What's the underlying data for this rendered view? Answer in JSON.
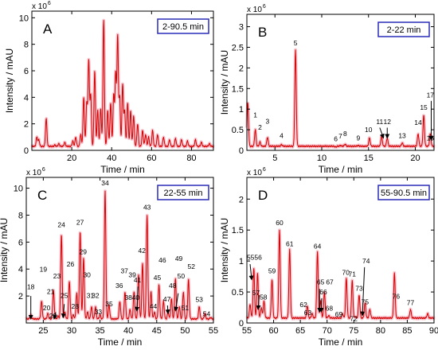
{
  "chart_data": [
    {
      "type": "line",
      "panel_letter": "A",
      "time_range_label": "2-90.5 min",
      "xlabel": "Time / min",
      "ylabel": "Intensity / mAU",
      "y_multiplier_label": "x 10",
      "y_multiplier_exp": "6",
      "xlim": [
        0,
        91
      ],
      "ylim": [
        0,
        10.5
      ],
      "x_ticks": [
        20,
        40,
        60,
        80
      ],
      "y_ticks": [
        0,
        2,
        4,
        6,
        8,
        10
      ],
      "baseline": 0.3,
      "peaks": [
        [
          2.5,
          1.0
        ],
        [
          3.5,
          0.8
        ],
        [
          7.2,
          2.4
        ],
        [
          11.5,
          0.4
        ],
        [
          13.5,
          0.5
        ],
        [
          16.5,
          0.6
        ],
        [
          20.5,
          0.7
        ],
        [
          22,
          1.0
        ],
        [
          24.5,
          1.2
        ],
        [
          26,
          4.0
        ],
        [
          27.5,
          3.6
        ],
        [
          28.5,
          6.8
        ],
        [
          29.5,
          4.2
        ],
        [
          31.5,
          6.0
        ],
        [
          33,
          3.0
        ],
        [
          34.5,
          3.2
        ],
        [
          36,
          9.8
        ],
        [
          38,
          3.0
        ],
        [
          39.5,
          3.6
        ],
        [
          41,
          4.2
        ],
        [
          42,
          5.8
        ],
        [
          43,
          8.6
        ],
        [
          44,
          4.0
        ],
        [
          45.5,
          5.0
        ],
        [
          46.5,
          3.0
        ],
        [
          48,
          3.6
        ],
        [
          49.5,
          3.0
        ],
        [
          51,
          2.6
        ],
        [
          53,
          2.0
        ],
        [
          55.5,
          1.5
        ],
        [
          57,
          1.2
        ],
        [
          58.5,
          1.0
        ],
        [
          60.5,
          1.5
        ],
        [
          63,
          1.2
        ],
        [
          66,
          1.0
        ],
        [
          69,
          0.8
        ],
        [
          72,
          0.9
        ],
        [
          75,
          0.8
        ],
        [
          78,
          0.7
        ],
        [
          82,
          0.8
        ],
        [
          85,
          0.6
        ],
        [
          89,
          0.5
        ]
      ]
    },
    {
      "type": "line",
      "panel_letter": "B",
      "time_range_label": "2-22 min",
      "xlabel": "Time / min",
      "ylabel": "Intensity / mAU",
      "y_multiplier_label": "x 10",
      "y_multiplier_exp": "6",
      "xlim": [
        2,
        22
      ],
      "ylim": [
        0,
        3.3
      ],
      "x_ticks": [
        5,
        10,
        15,
        20
      ],
      "y_ticks": [
        0,
        0.5,
        1,
        1.5,
        2,
        2.5,
        3
      ],
      "baseline": 0.1,
      "peaks": [
        [
          2.1,
          1.15
        ],
        [
          2.9,
          0.5
        ],
        [
          3.4,
          0.2
        ],
        [
          4.2,
          0.32
        ],
        [
          5.7,
          0.14
        ],
        [
          7.2,
          2.42
        ],
        [
          11.5,
          0.08
        ],
        [
          12.0,
          0.12
        ],
        [
          12.5,
          0.15
        ],
        [
          13.9,
          0.12
        ],
        [
          15.1,
          0.3
        ],
        [
          16.4,
          0.35
        ],
        [
          17.0,
          0.3
        ],
        [
          18.6,
          0.18
        ],
        [
          20.3,
          0.4
        ],
        [
          20.9,
          0.85
        ],
        [
          21.6,
          0.4
        ]
      ],
      "peak_labels": [
        {
          "label": "1",
          "x": 2.9,
          "y": 0.8
        },
        {
          "label": "2",
          "x": 3.4,
          "y": 0.5
        },
        {
          "label": "3",
          "x": 4.2,
          "y": 0.65
        },
        {
          "label": "4",
          "x": 5.7,
          "y": 0.3
        },
        {
          "label": "5",
          "x": 7.2,
          "y": 2.55
        },
        {
          "label": "6",
          "x": 11.5,
          "y": 0.22
        },
        {
          "label": "7",
          "x": 12.0,
          "y": 0.29
        },
        {
          "label": "8",
          "x": 12.5,
          "y": 0.35
        },
        {
          "label": "9",
          "x": 13.9,
          "y": 0.24
        },
        {
          "label": "10",
          "x": 15.0,
          "y": 0.44
        },
        {
          "label": "11",
          "x": 16.2,
          "y": 0.64
        },
        {
          "label": "12",
          "x": 17.0,
          "y": 0.64
        },
        {
          "label": "13",
          "x": 18.6,
          "y": 0.3
        },
        {
          "label": "14",
          "x": 20.3,
          "y": 0.62
        },
        {
          "label": "15",
          "x": 20.9,
          "y": 0.98
        },
        {
          "label": "16",
          "x": 21.6,
          "y": 0.24
        },
        {
          "label": "17",
          "x": 21.6,
          "y": 1.28
        }
      ],
      "arrows": [
        {
          "from": [
            16.2,
            0.55
          ],
          "to": [
            16.6,
            0.3
          ]
        },
        {
          "from": [
            17.0,
            0.55
          ],
          "to": [
            17.0,
            0.3
          ]
        },
        {
          "from": [
            21.7,
            1.2
          ],
          "to": [
            21.7,
            0.25
          ]
        }
      ]
    },
    {
      "type": "line",
      "panel_letter": "C",
      "time_range_label": "22-55 min",
      "xlabel": "Time / min",
      "ylabel": "Intensity / mAU",
      "y_multiplier_label": "x 10",
      "y_multiplier_exp": "6",
      "xlim": [
        22,
        55
      ],
      "ylim": [
        0,
        10.8
      ],
      "x_ticks": [
        25,
        30,
        35,
        40,
        45,
        50,
        55
      ],
      "y_ticks": [
        2,
        4,
        6,
        8,
        10
      ],
      "baseline": 0.3,
      "peaks": [
        [
          22.8,
          0.6
        ],
        [
          24.7,
          1.6
        ],
        [
          25.8,
          0.7
        ],
        [
          26.8,
          2.4
        ],
        [
          27.6,
          0.5
        ],
        [
          28.2,
          6.6
        ],
        [
          28.8,
          0.8
        ],
        [
          29.6,
          3.1
        ],
        [
          30.3,
          0.6
        ],
        [
          30.9,
          2.2
        ],
        [
          31.5,
          6.8
        ],
        [
          32.1,
          4.8
        ],
        [
          32.8,
          0.8
        ],
        [
          33.5,
          1.2
        ],
        [
          34.2,
          1.2
        ],
        [
          35.0,
          0.6
        ],
        [
          35.9,
          9.8
        ],
        [
          36.6,
          1.3
        ],
        [
          38.5,
          1.6
        ],
        [
          39.4,
          2.3
        ],
        [
          40.3,
          1.0
        ],
        [
          41.0,
          2.3
        ],
        [
          41.8,
          3.6
        ],
        [
          42.5,
          4.4
        ],
        [
          43.3,
          8.0
        ],
        [
          44.0,
          2.3
        ],
        [
          44.6,
          0.8
        ],
        [
          45.4,
          2.8
        ],
        [
          46.2,
          1.6
        ],
        [
          47.0,
          0.8
        ],
        [
          47.6,
          1.8
        ],
        [
          48.3,
          3.3
        ],
        [
          49.0,
          1.2
        ],
        [
          49.7,
          2.3
        ],
        [
          50.6,
          3.2
        ],
        [
          52.5,
          1.2
        ],
        [
          53.5,
          0.7
        ],
        [
          54.5,
          0.4
        ]
      ],
      "peak_labels": [
        {
          "label": "18",
          "x": 22.8,
          "y": 2.5
        },
        {
          "label": "19",
          "x": 25.0,
          "y": 3.8
        },
        {
          "label": "20",
          "x": 25.6,
          "y": 0.95
        },
        {
          "label": "21",
          "x": 26.3,
          "y": 2.15
        },
        {
          "label": "22",
          "x": 26.7,
          "y": 0.35
        },
        {
          "label": "23",
          "x": 27.4,
          "y": 3.3
        },
        {
          "label": "24",
          "x": 28.2,
          "y": 7.1
        },
        {
          "label": "25",
          "x": 28.7,
          "y": 1.85
        },
        {
          "label": "26",
          "x": 29.8,
          "y": 4.2
        },
        {
          "label": "27",
          "x": 31.5,
          "y": 7.3
        },
        {
          "label": "28",
          "x": 30.6,
          "y": 1.05
        },
        {
          "label": "29",
          "x": 32.0,
          "y": 5.1
        },
        {
          "label": "30",
          "x": 32.7,
          "y": 3.4
        },
        {
          "label": "31",
          "x": 33.3,
          "y": 1.85
        },
        {
          "label": "32",
          "x": 34.2,
          "y": 1.85
        },
        {
          "label": "33",
          "x": 34.7,
          "y": 0.65
        },
        {
          "label": "34",
          "x": 35.9,
          "y": 10.2
        },
        {
          "label": "35",
          "x": 36.6,
          "y": 1.25
        },
        {
          "label": "36",
          "x": 38.4,
          "y": 2.6
        },
        {
          "label": "37",
          "x": 39.3,
          "y": 3.7
        },
        {
          "label": "38",
          "x": 40.0,
          "y": 1.7
        },
        {
          "label": "39",
          "x": 40.7,
          "y": 3.4
        },
        {
          "label": "40",
          "x": 41.3,
          "y": 1.7
        },
        {
          "label": "41",
          "x": 41.6,
          "y": 3.0
        },
        {
          "label": "42",
          "x": 42.4,
          "y": 5.2
        },
        {
          "label": "43",
          "x": 43.3,
          "y": 8.4
        },
        {
          "label": "44",
          "x": 44.4,
          "y": 1.05
        },
        {
          "label": "45",
          "x": 45.1,
          "y": 3.2
        },
        {
          "label": "46",
          "x": 46.0,
          "y": 4.5
        },
        {
          "label": "47",
          "x": 46.8,
          "y": 1.6
        },
        {
          "label": "48",
          "x": 47.8,
          "y": 2.6
        },
        {
          "label": "49",
          "x": 48.9,
          "y": 4.6
        },
        {
          "label": "50",
          "x": 49.3,
          "y": 3.3
        },
        {
          "label": "51",
          "x": 50.0,
          "y": 0.95
        },
        {
          "label": "52",
          "x": 51.1,
          "y": 4.0
        },
        {
          "label": "53",
          "x": 52.5,
          "y": 1.55
        },
        {
          "label": "54",
          "x": 53.8,
          "y": 0.5
        }
      ],
      "arrows": [
        {
          "from": [
            22.8,
            2.0
          ],
          "to": [
            22.8,
            0.3
          ]
        },
        {
          "from": [
            27.2,
            0.8
          ],
          "to": [
            26.9,
            0.3
          ]
        },
        {
          "from": [
            28.7,
            1.4
          ],
          "to": [
            28.5,
            0.4
          ]
        },
        {
          "from": [
            41.7,
            2.7
          ],
          "to": [
            41.5,
            0.9
          ]
        },
        {
          "from": [
            46.9,
            1.3
          ],
          "to": [
            47.0,
            0.7
          ]
        },
        {
          "from": [
            48.8,
            2.2
          ],
          "to": [
            48.3,
            0.9
          ]
        }
      ]
    },
    {
      "type": "line",
      "panel_letter": "D",
      "time_range_label": "55-90.5 min",
      "xlabel": "Time / min",
      "ylabel": "Intensity / mAU",
      "y_multiplier_label": "x 10",
      "y_multiplier_exp": "6",
      "xlim": [
        55,
        90
      ],
      "ylim": [
        0,
        2.35
      ],
      "x_ticks": [
        55,
        60,
        65,
        70,
        75,
        80,
        85,
        90
      ],
      "y_ticks": [
        0,
        0.5,
        1,
        1.5,
        2
      ],
      "baseline": 0.08,
      "peaks": [
        [
          55.6,
          0.3
        ],
        [
          56.3,
          0.88
        ],
        [
          57.0,
          0.8
        ],
        [
          57.7,
          0.25
        ],
        [
          58.2,
          0.35
        ],
        [
          59.7,
          0.7
        ],
        [
          61.1,
          1.5
        ],
        [
          63.0,
          1.18
        ],
        [
          66.3,
          0.28
        ],
        [
          67.2,
          0.15
        ],
        [
          68.2,
          1.15
        ],
        [
          68.8,
          0.35
        ],
        [
          69.5,
          0.5
        ],
        [
          70.3,
          0.12
        ],
        [
          72.9,
          0.15
        ],
        [
          73.6,
          0.72
        ],
        [
          74.7,
          0.68
        ],
        [
          75.3,
          0.1
        ],
        [
          76.0,
          0.45
        ],
        [
          77.1,
          0.32
        ],
        [
          78.0,
          0.22
        ],
        [
          82.6,
          0.8
        ],
        [
          85.6,
          0.22
        ],
        [
          88.8,
          0.15
        ]
      ],
      "peak_labels": [
        {
          "label": "55",
          "x": 55.7,
          "y": 1.02
        },
        {
          "label": "56",
          "x": 57.1,
          "y": 1.02
        },
        {
          "label": "57",
          "x": 56.7,
          "y": 0.45
        },
        {
          "label": "58",
          "x": 58.1,
          "y": 0.38
        },
        {
          "label": "59",
          "x": 59.7,
          "y": 0.8
        },
        {
          "label": "60",
          "x": 61.1,
          "y": 1.58
        },
        {
          "label": "61",
          "x": 63.0,
          "y": 1.24
        },
        {
          "label": "62",
          "x": 65.6,
          "y": 0.26
        },
        {
          "label": "63",
          "x": 66.4,
          "y": 0.13
        },
        {
          "label": "64",
          "x": 68.2,
          "y": 1.2
        },
        {
          "label": "65",
          "x": 68.8,
          "y": 0.62
        },
        {
          "label": "66",
          "x": 69.3,
          "y": 0.46
        },
        {
          "label": "67",
          "x": 70.5,
          "y": 0.62
        },
        {
          "label": "68",
          "x": 70.4,
          "y": 0.2
        },
        {
          "label": "69",
          "x": 72.2,
          "y": 0.1
        },
        {
          "label": "70",
          "x": 73.5,
          "y": 0.78
        },
        {
          "label": "71",
          "x": 74.7,
          "y": 0.75
        },
        {
          "label": "72",
          "x": 75.0,
          "y": 0.03
        },
        {
          "label": "73",
          "x": 76.0,
          "y": 0.52
        },
        {
          "label": "74",
          "x": 77.3,
          "y": 0.96
        },
        {
          "label": "75",
          "x": 77.1,
          "y": 0.3
        },
        {
          "label": "76",
          "x": 82.9,
          "y": 0.39
        },
        {
          "label": "77",
          "x": 85.6,
          "y": 0.29
        }
      ],
      "arrows": [
        {
          "from": [
            55.6,
            0.95
          ],
          "to": [
            55.9,
            0.7
          ]
        },
        {
          "from": [
            57.3,
            0.45
          ],
          "to": [
            57.1,
            0.22
          ]
        },
        {
          "from": [
            68.6,
            0.55
          ],
          "to": [
            68.6,
            0.18
          ]
        },
        {
          "from": [
            69.0,
            0.4
          ],
          "to": [
            68.9,
            0.18
          ]
        },
        {
          "from": [
            77.0,
            0.9
          ],
          "to": [
            76.6,
            0.12
          ]
        }
      ]
    }
  ],
  "colors": {
    "trace": "#d40000",
    "glow": "#f8c6d0",
    "range_box": "#2b2bb8",
    "axis": "#000000"
  }
}
